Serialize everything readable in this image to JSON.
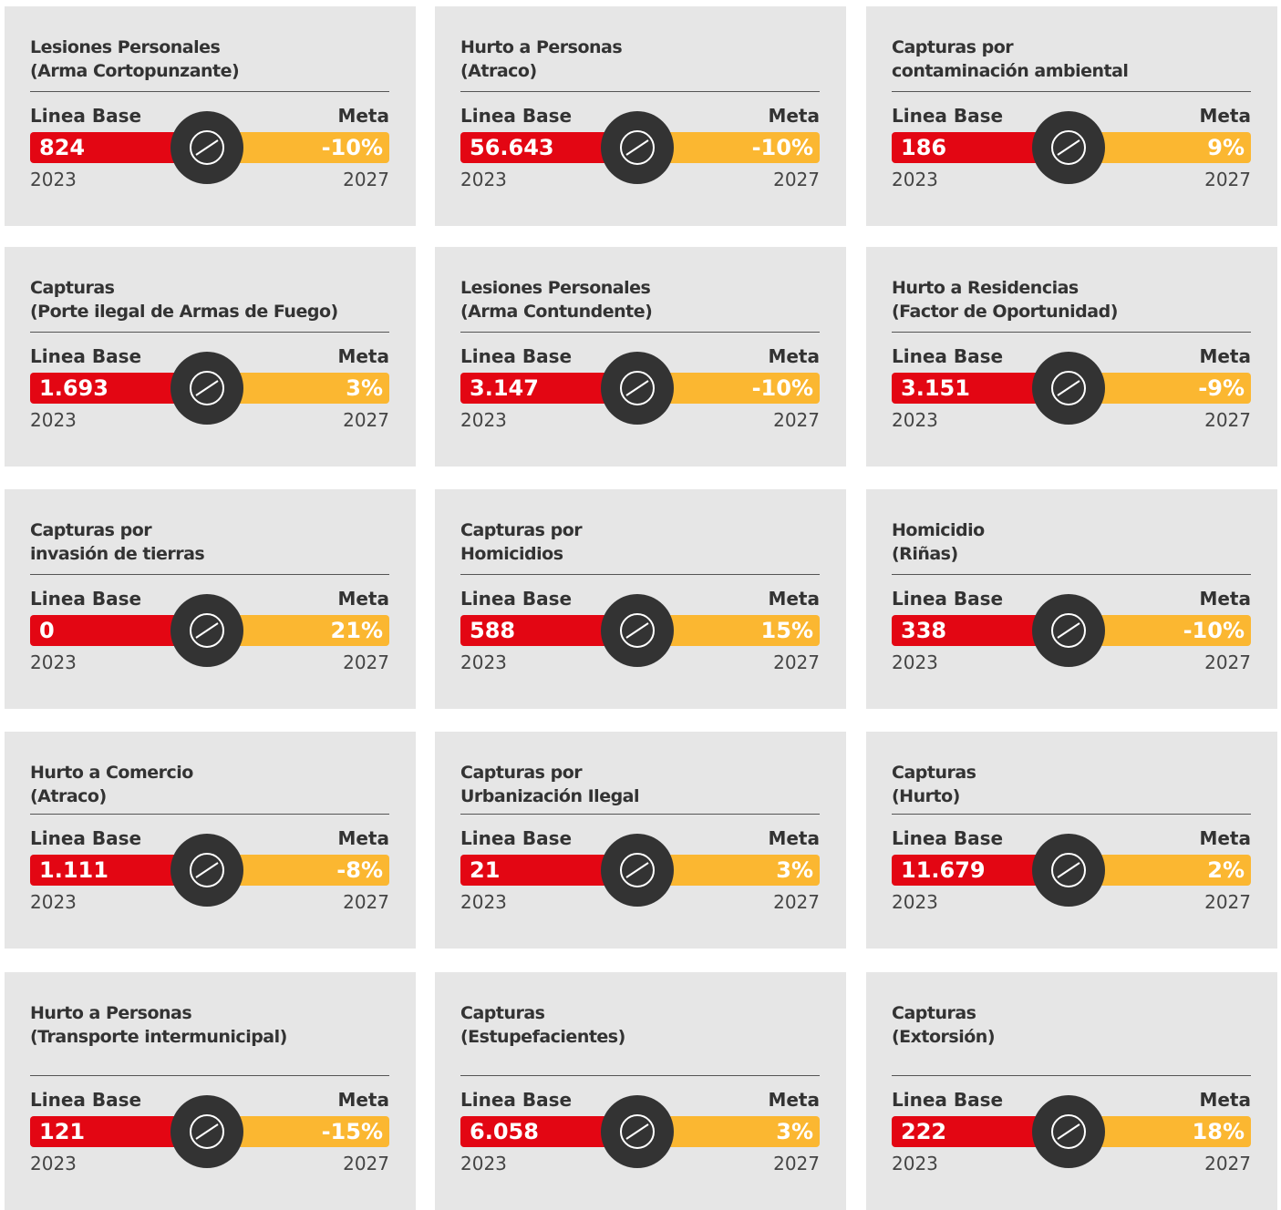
{
  "cards": [
    {
      "title": [
        "Lesiones Personales",
        "(Arma Cortopunzante)"
      ],
      "base_label": "Linea Base",
      "meta_label": "Meta",
      "base_value": "824",
      "meta_value": "-10%",
      "base_year": "2023",
      "meta_year": "2027"
    },
    {
      "title": [
        "Hurto a Personas",
        "(Atraco)"
      ],
      "base_label": "Linea Base",
      "meta_label": "Meta",
      "base_value": "56.643",
      "meta_value": "-10%",
      "base_year": "2023",
      "meta_year": "2027"
    },
    {
      "title": [
        "Capturas por",
        "contaminación ambiental"
      ],
      "base_label": "Linea Base",
      "meta_label": "Meta",
      "base_value": "186",
      "meta_value": "9%",
      "base_year": "2023",
      "meta_year": "2027"
    },
    {
      "title": [
        "Capturas",
        "(Porte ilegal de Armas de Fuego)"
      ],
      "base_label": "Linea Base",
      "meta_label": "Meta",
      "base_value": "1.693",
      "meta_value": "3%",
      "base_year": "2023",
      "meta_year": "2027"
    },
    {
      "title": [
        "Lesiones Personales",
        "(Arma Contundente)"
      ],
      "base_label": "Linea Base",
      "meta_label": "Meta",
      "base_value": "3.147",
      "meta_value": "-10%",
      "base_year": "2023",
      "meta_year": "2027"
    },
    {
      "title": [
        "Hurto a Residencias",
        "(Factor de Oportunidad)"
      ],
      "base_label": "Linea Base",
      "meta_label": "Meta",
      "base_value": "3.151",
      "meta_value": "-9%",
      "base_year": "2023",
      "meta_year": "2027"
    },
    {
      "title": [
        "Capturas por",
        "invasión de tierras"
      ],
      "base_label": "Linea Base",
      "meta_label": "Meta",
      "base_value": "0",
      "meta_value": "21%",
      "base_year": "2023",
      "meta_year": "2027"
    },
    {
      "title": [
        "Capturas por",
        "Homicidios"
      ],
      "base_label": "Linea Base",
      "meta_label": "Meta",
      "base_value": "588",
      "meta_value": "15%",
      "base_year": "2023",
      "meta_year": "2027"
    },
    {
      "title": [
        "Homicidio",
        "(Riñas)"
      ],
      "base_label": "Linea Base",
      "meta_label": "Meta",
      "base_value": "338",
      "meta_value": "-10%",
      "base_year": "2023",
      "meta_year": "2027"
    },
    {
      "title": [
        "Hurto a Comercio",
        "(Atraco)"
      ],
      "base_label": "Linea Base",
      "meta_label": "Meta",
      "base_value": "1.111",
      "meta_value": "-8%",
      "base_year": "2023",
      "meta_year": "2027"
    },
    {
      "title": [
        "Capturas por",
        "Urbanización Ilegal"
      ],
      "base_label": "Linea Base",
      "meta_label": "Meta",
      "base_value": "21",
      "meta_value": "3%",
      "base_year": "2023",
      "meta_year": "2027"
    },
    {
      "title": [
        "Capturas",
        "(Hurto)"
      ],
      "base_label": "Linea Base",
      "meta_label": "Meta",
      "base_value": "11.679",
      "meta_value": "2%",
      "base_year": "2023",
      "meta_year": "2027"
    },
    {
      "title": [
        "Hurto a Personas",
        "(Transporte intermunicipal)"
      ],
      "base_label": "Linea Base",
      "meta_label": "Meta",
      "base_value": "121",
      "meta_value": "-15%",
      "base_year": "2023",
      "meta_year": "2027"
    },
    {
      "title": [
        "Capturas",
        "(Estupefacientes)"
      ],
      "base_label": "Linea Base",
      "meta_label": "Meta",
      "base_value": "6.058",
      "meta_value": "3%",
      "base_year": "2023",
      "meta_year": "2027"
    },
    {
      "title": [
        "Capturas",
        "(Extorsión)"
      ],
      "base_label": "Linea Base",
      "meta_label": "Meta",
      "base_value": "222",
      "meta_value": "18%",
      "base_year": "2023",
      "meta_year": "2027"
    }
  ]
}
